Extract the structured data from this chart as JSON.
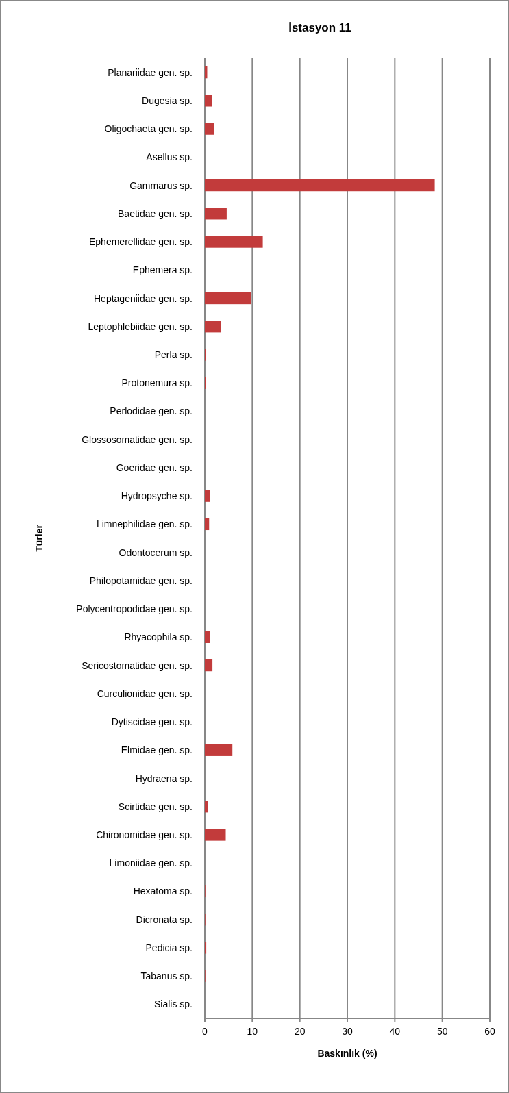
{
  "chart_data": {
    "type": "bar",
    "orientation": "horizontal",
    "title": "İstasyon 11",
    "xlabel": "Baskınlık (%)",
    "ylabel": "Türler",
    "categories": [
      "Planariidae gen. sp.",
      "Dugesia sp.",
      "Oligochaeta gen. sp.",
      "Asellus sp.",
      "Gammarus sp.",
      "Baetidae gen. sp.",
      "Ephemerellidae gen. sp.",
      "Ephemera sp.",
      "Heptageniidae gen. sp.",
      "Leptophlebiidae gen. sp.",
      "Perla sp.",
      "Protonemura sp.",
      "Perlodidae gen. sp.",
      "Glossosomatidae gen. sp.",
      "Goeridae gen. sp.",
      "Hydropsyche sp.",
      "Limnephilidae gen. sp.",
      "Odontocerum sp.",
      "Philopotamidae gen. sp.",
      "Polycentropodidae gen. sp.",
      "Rhyacophila sp.",
      "Sericostomatidae gen. sp.",
      "Curculionidae gen. sp.",
      "Dytiscidae gen. sp.",
      "Elmidae gen. sp.",
      "Hydraena sp.",
      "Scirtidae gen. sp.",
      "Chironomidae gen. sp.",
      "Limoniidae gen. sp.",
      "Hexatoma sp.",
      "Dicronata sp.",
      "Pedicia sp.",
      "Tabanus sp.",
      "Sialis sp."
    ],
    "values": [
      0.5,
      1.5,
      1.9,
      0,
      48.4,
      4.6,
      12.2,
      0,
      9.7,
      3.4,
      0.2,
      0.2,
      0,
      0,
      0,
      1.1,
      0.9,
      0,
      0,
      0,
      1.1,
      1.6,
      0,
      0,
      5.8,
      0,
      0.6,
      4.4,
      0,
      0.1,
      0.1,
      0.3,
      0.1,
      0
    ],
    "color": "#c23b3b",
    "xlim": [
      0,
      60
    ],
    "xticks": [
      0,
      10,
      20,
      30,
      40,
      50,
      60
    ],
    "grid": "x"
  }
}
